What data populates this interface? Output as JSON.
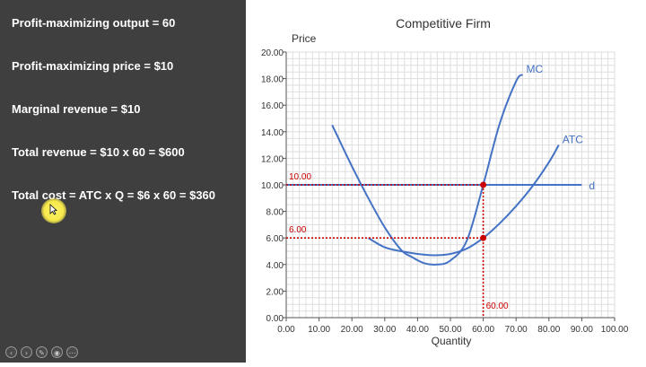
{
  "sidebar": {
    "lines": [
      "Profit-maximizing output = 60",
      "Profit-maximizing price = $10",
      "Marginal revenue = $10",
      "Total revenue = $10 x 60 = $600",
      "Total cost = ATC x Q = $6 x 60 = $360"
    ]
  },
  "player_controls": {
    "icons": [
      "previous-icon",
      "next-icon",
      "pen-icon",
      "zoom-icon",
      "more-icon"
    ]
  },
  "colors": {
    "panel_bg": "#3f3f3f",
    "curve": "#4472c4",
    "annotation": "#cc0000",
    "cursor_highlight": "#f6e84a"
  },
  "chart_data": {
    "type": "line",
    "title": "Competitive Firm",
    "xlabel": "Quantity",
    "ylabel": "Price",
    "xlim": [
      0,
      100
    ],
    "ylim": [
      0,
      20
    ],
    "x_ticks": [
      "0.00",
      "10.00",
      "20.00",
      "30.00",
      "40.00",
      "50.00",
      "60.00",
      "70.00",
      "80.00",
      "90.00",
      "100.00"
    ],
    "y_ticks": [
      "0.00",
      "2.00",
      "4.00",
      "6.00",
      "8.00",
      "10.00",
      "12.00",
      "14.00",
      "16.00",
      "18.00",
      "20.00"
    ],
    "grid": true,
    "series": [
      {
        "name": "MC",
        "x": [
          14,
          20,
          25,
          30,
          35,
          38,
          42,
          46,
          50,
          55,
          60,
          65,
          70,
          72
        ],
        "y": [
          14.5,
          11.4,
          9.0,
          6.8,
          5.1,
          4.6,
          4.1,
          4.0,
          4.3,
          5.8,
          10.0,
          14.6,
          17.8,
          18.3
        ]
      },
      {
        "name": "ATC",
        "x": [
          25,
          30,
          35,
          40,
          45,
          50,
          55,
          60,
          65,
          70,
          75,
          80,
          83
        ],
        "y": [
          6.0,
          5.3,
          5.0,
          4.8,
          4.7,
          4.8,
          5.2,
          6.0,
          7.1,
          8.4,
          9.9,
          11.7,
          13.0
        ]
      },
      {
        "name": "d",
        "x": [
          0,
          90
        ],
        "y": [
          10,
          10
        ]
      }
    ],
    "points": [
      {
        "x": 60,
        "y": 10
      },
      {
        "x": 60,
        "y": 6
      }
    ],
    "annotations": {
      "price_label": "10.00",
      "atc_label": "6.00",
      "quantity_label": "60.00"
    }
  }
}
